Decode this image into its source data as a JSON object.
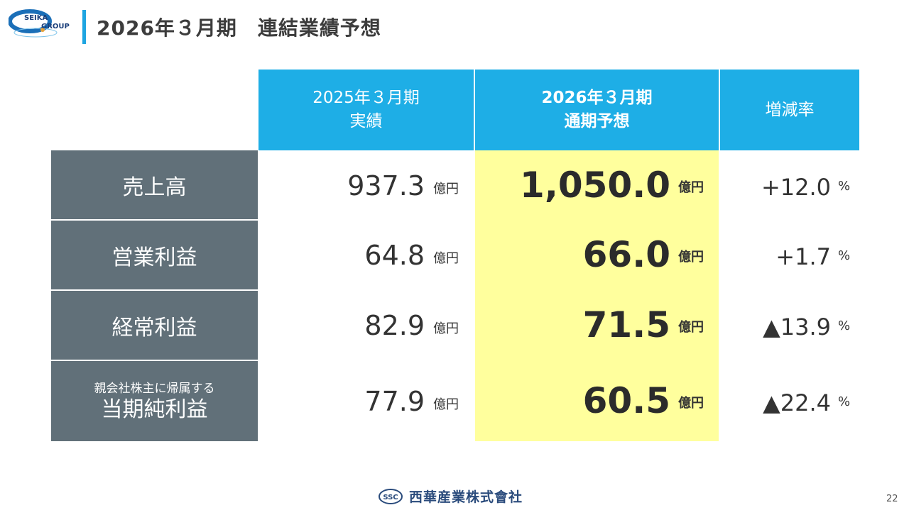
{
  "header": {
    "logo_top": "SEIKA",
    "logo_bottom": "GROUP",
    "title": "2026年３月期　連結業績予想"
  },
  "table": {
    "columns": [
      {
        "line1": "2025年３月期",
        "line2": "実績"
      },
      {
        "line1": "2026年３月期",
        "line2": "通期予想"
      },
      {
        "line1": "増減率"
      }
    ],
    "rows": [
      {
        "label": "売上高",
        "actual": "937.3",
        "actual_unit": "億円",
        "forecast": "1,050.0",
        "forecast_unit": "億円",
        "rate": "+12.0",
        "rate_unit": "%"
      },
      {
        "label": "営業利益",
        "actual": "64.8",
        "actual_unit": "億円",
        "forecast": "66.0",
        "forecast_unit": "億円",
        "rate": "+1.7",
        "rate_unit": "%"
      },
      {
        "label": "経常利益",
        "actual": "82.9",
        "actual_unit": "億円",
        "forecast": "71.5",
        "forecast_unit": "億円",
        "rate": "▲13.9",
        "rate_unit": "%"
      },
      {
        "label_sub": "親会社株主に帰属する",
        "label": "当期純利益",
        "actual": "77.9",
        "actual_unit": "億円",
        "forecast": "60.5",
        "forecast_unit": "億円",
        "rate": "▲22.4",
        "rate_unit": "%"
      }
    ]
  },
  "footer": {
    "company_mark": "SSC",
    "company_name": "西華産業株式會社",
    "page_number": "22"
  },
  "colors": {
    "header_bg": "#1eaee6",
    "label_bg": "#617079",
    "highlight": "#ffff9d",
    "accent": "#1ea5e1"
  }
}
